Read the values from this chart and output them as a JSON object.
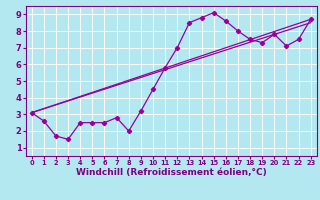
{
  "xlabel": "Windchill (Refroidissement éolien,°C)",
  "bg_color": "#b3e8f0",
  "grid_color": "#ffffff",
  "line_color": "#990099",
  "xlim": [
    -0.5,
    23.5
  ],
  "ylim": [
    0.5,
    9.5
  ],
  "xticks": [
    0,
    1,
    2,
    3,
    4,
    5,
    6,
    7,
    8,
    9,
    10,
    11,
    12,
    13,
    14,
    15,
    16,
    17,
    18,
    19,
    20,
    21,
    22,
    23
  ],
  "yticks": [
    1,
    2,
    3,
    4,
    5,
    6,
    7,
    8,
    9
  ],
  "curve1_x": [
    0,
    1,
    2,
    3,
    4,
    5,
    6,
    7,
    8,
    9,
    10,
    11,
    12,
    13,
    14,
    15,
    16,
    17,
    18,
    19,
    20,
    21,
    22,
    23
  ],
  "curve1_y": [
    3.1,
    2.6,
    1.7,
    1.5,
    2.5,
    2.5,
    2.5,
    2.8,
    2.0,
    3.2,
    4.5,
    5.8,
    7.0,
    8.5,
    8.8,
    9.1,
    8.6,
    8.0,
    7.5,
    7.3,
    7.8,
    7.1,
    7.5,
    8.7
  ],
  "line2_x0": 0,
  "line2_x1": 23,
  "line2_y0": 3.1,
  "line2_y1": 8.5,
  "line3_x0": 0,
  "line3_x1": 23,
  "line3_y0": 3.1,
  "line3_y1": 8.7,
  "font_color": "#800080",
  "xlabel_fontsize": 6.5,
  "tick_fontsize": 6.0,
  "spine_color": "#800080"
}
